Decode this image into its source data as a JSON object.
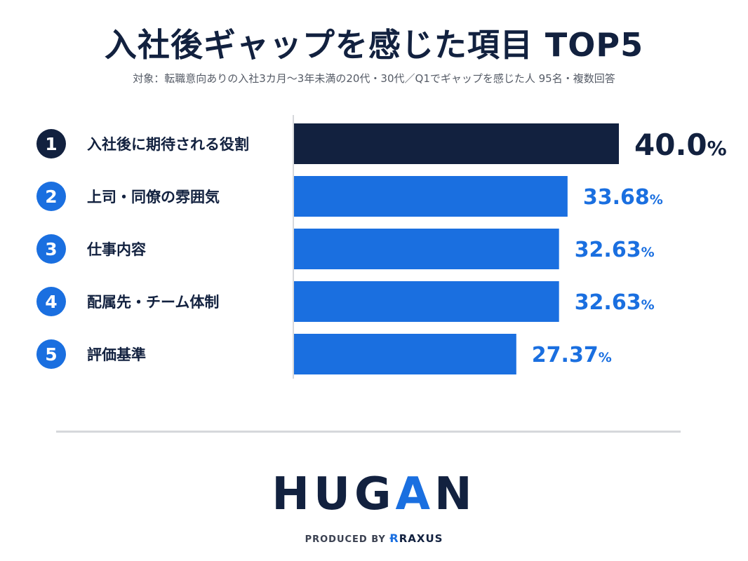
{
  "header": {
    "title": "入社後ギャップを感じた項目 TOP5",
    "subtitle": "対象：転職意向ありの入社3カ月〜3年未満の20代・30代／Q1でギャップを感じた人 95名・複数回答"
  },
  "chart_data": {
    "type": "bar",
    "orientation": "horizontal",
    "categories": [
      "入社後に期待される役割",
      "上司・同僚の雰囲気",
      "仕事内容",
      "配属先・チーム体制",
      "評価基準"
    ],
    "ranks": [
      "1",
      "2",
      "3",
      "4",
      "5"
    ],
    "values": [
      40.0,
      33.68,
      32.63,
      32.63,
      27.37
    ],
    "value_labels": [
      "40.0",
      "33.68",
      "32.63",
      "32.63",
      "27.37"
    ],
    "unit": "%",
    "colors": {
      "top": "#12213f",
      "rest": "#1a6fe0"
    }
  },
  "footer": {
    "logo": {
      "main": "HUG",
      "accent": "A",
      "end": "N"
    },
    "produced_by": "PRODUCED BY",
    "brand_mark": "Ɍ",
    "brand": "RAXUS"
  }
}
